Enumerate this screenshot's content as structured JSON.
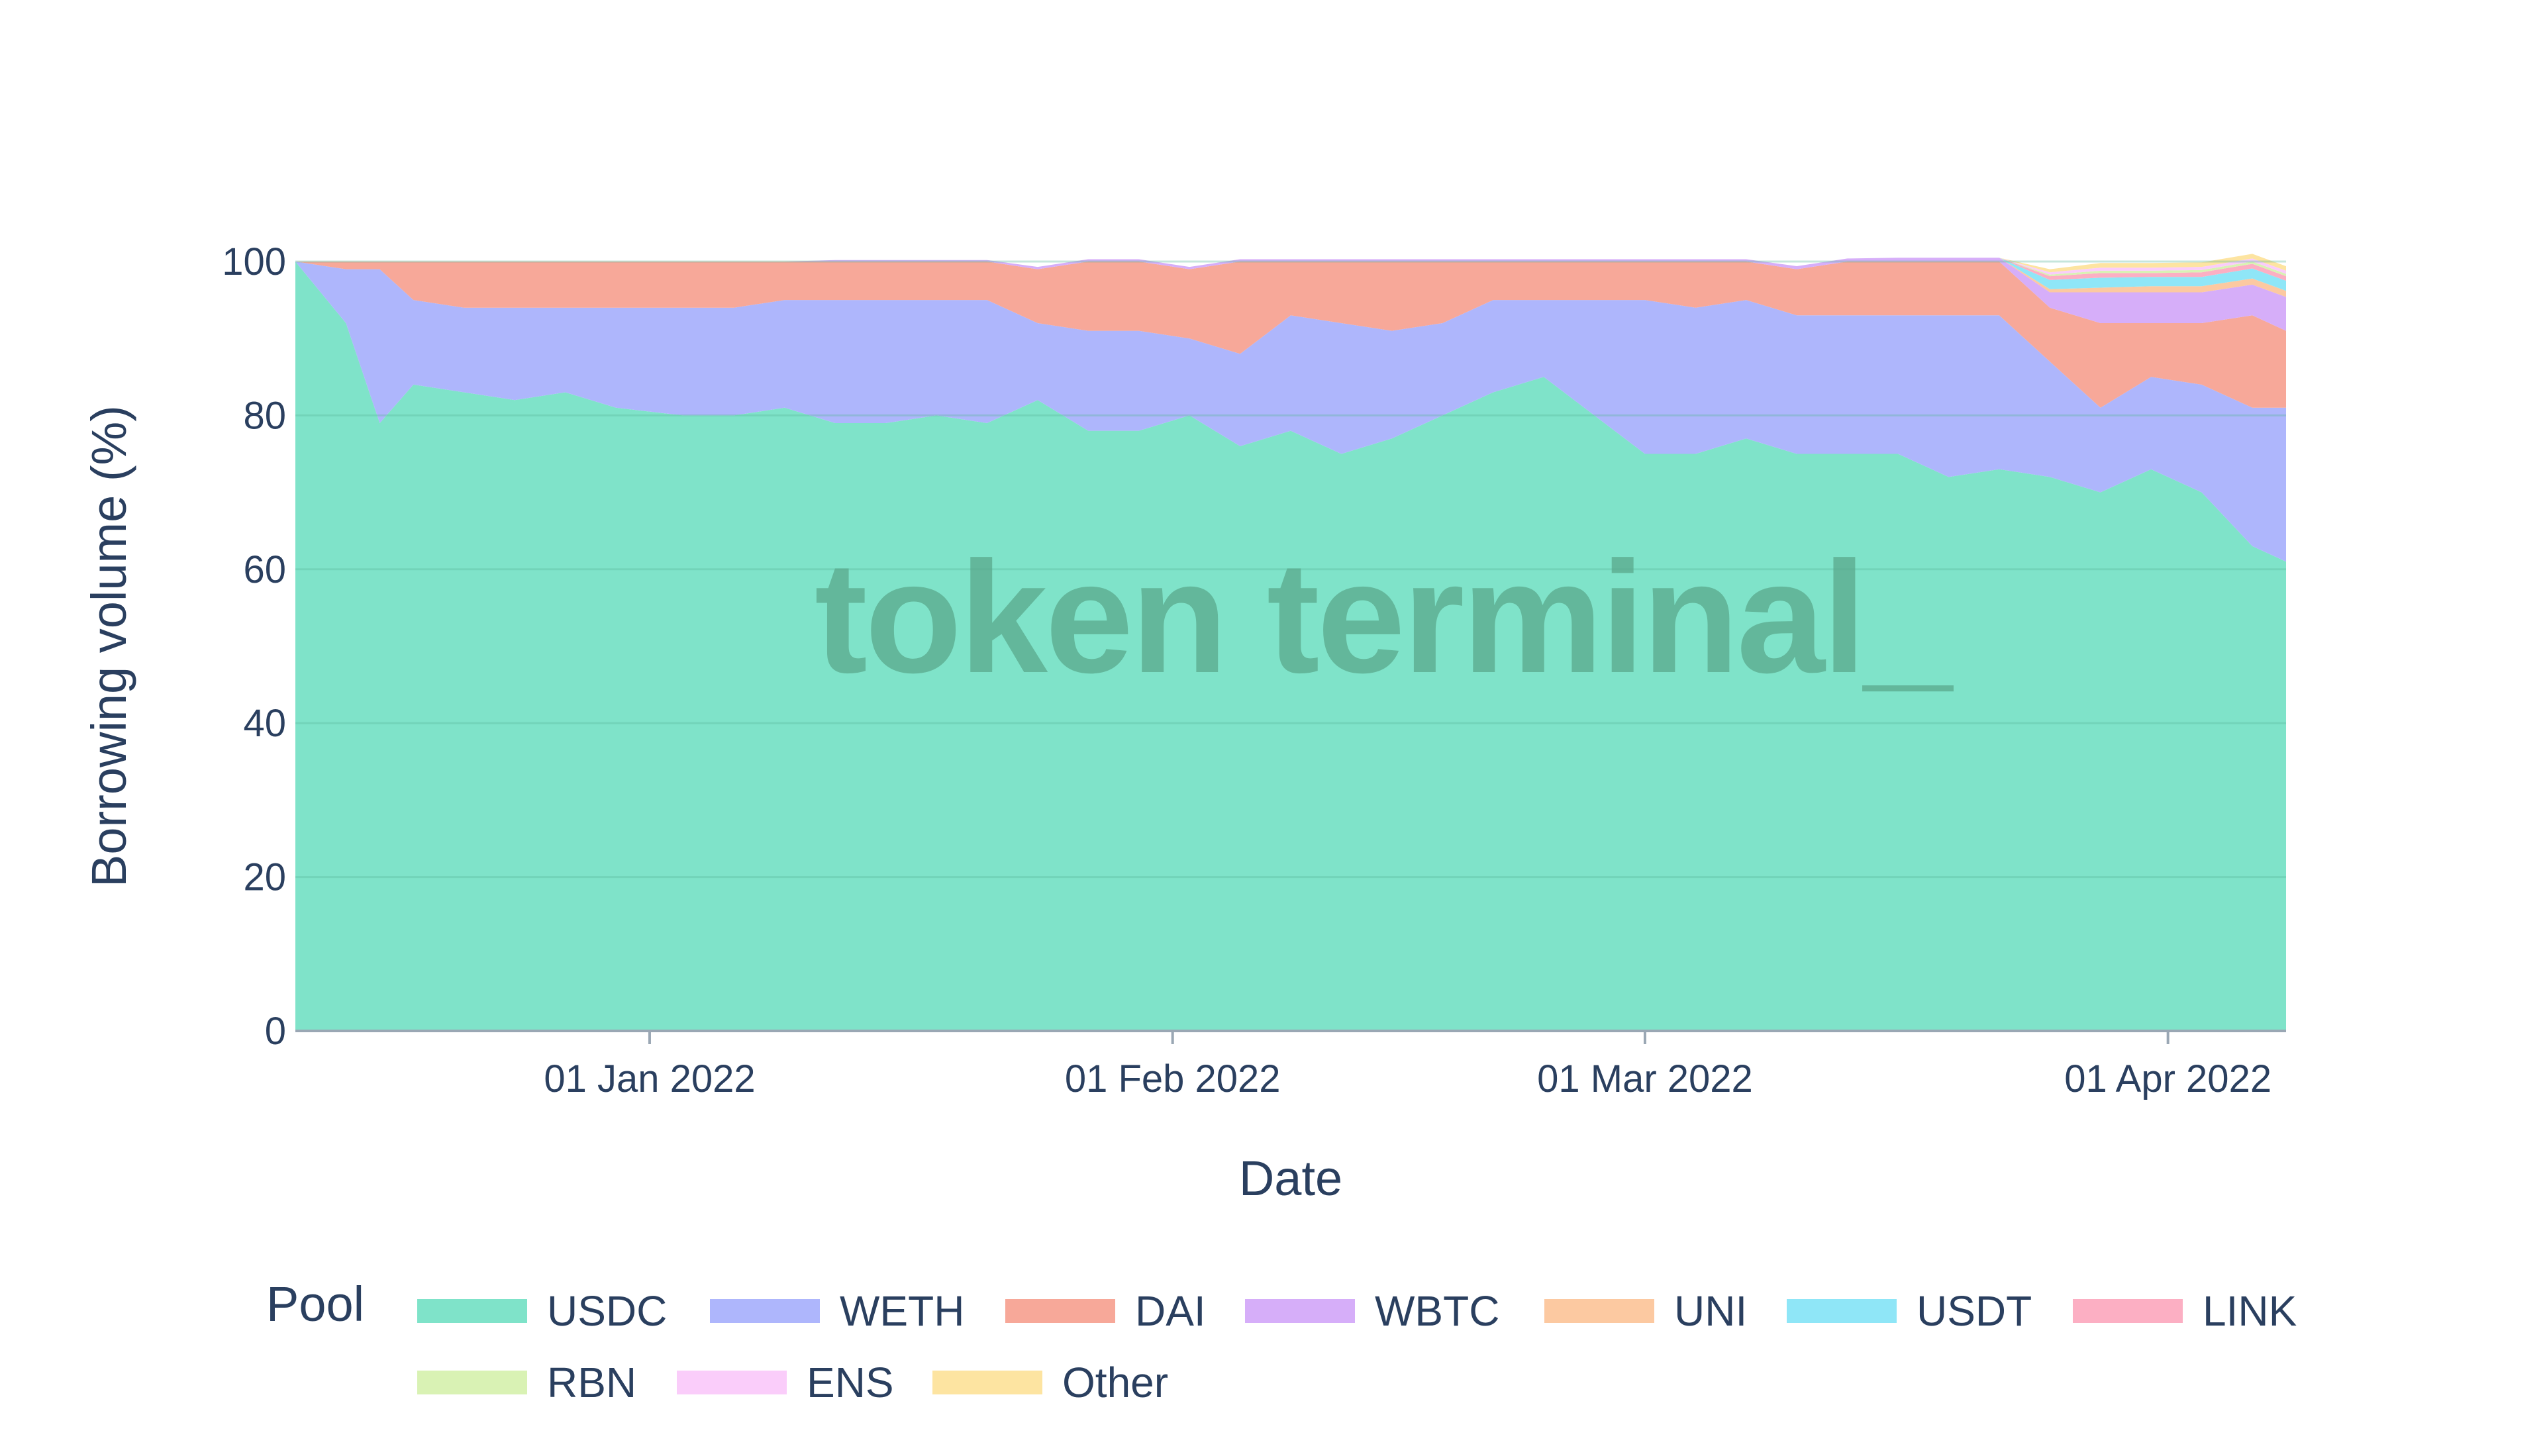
{
  "chart_data": {
    "type": "area",
    "stacked": true,
    "normalized": true,
    "xlabel": "Date",
    "ylabel": "Borrowing volume (%)",
    "ylim": [
      0,
      100
    ],
    "xlim": [
      "2021-12-11",
      "2022-04-08"
    ],
    "yticks": [
      0,
      20,
      40,
      60,
      80,
      100
    ],
    "xticks": [
      {
        "date": "2022-01-01",
        "label": "01 Jan 2022"
      },
      {
        "date": "2022-02-01",
        "label": "01 Feb 2022"
      },
      {
        "date": "2022-03-01",
        "label": "01 Mar 2022"
      },
      {
        "date": "2022-04-01",
        "label": "01 Apr 2022"
      }
    ],
    "grid": true,
    "legend": {
      "title": "Pool",
      "position": "bottom"
    },
    "watermark": "token terminal_",
    "x": [
      "2021-12-11",
      "2021-12-14",
      "2021-12-16",
      "2021-12-18",
      "2021-12-21",
      "2021-12-24",
      "2021-12-27",
      "2021-12-30",
      "2022-01-03",
      "2022-01-06",
      "2022-01-09",
      "2022-01-12",
      "2022-01-15",
      "2022-01-18",
      "2022-01-21",
      "2022-01-24",
      "2022-01-27",
      "2022-01-30",
      "2022-02-02",
      "2022-02-05",
      "2022-02-08",
      "2022-02-11",
      "2022-02-14",
      "2022-02-17",
      "2022-02-20",
      "2022-02-23",
      "2022-02-26",
      "2022-03-01",
      "2022-03-04",
      "2022-03-07",
      "2022-03-10",
      "2022-03-13",
      "2022-03-16",
      "2022-03-19",
      "2022-03-22",
      "2022-03-25",
      "2022-03-28",
      "2022-03-31",
      "2022-04-03",
      "2022-04-06",
      "2022-04-08"
    ],
    "series": [
      {
        "name": "USDC",
        "color": "#7fe3c9",
        "values": [
          100,
          92,
          79,
          84,
          83,
          82,
          83,
          81,
          80,
          80,
          81,
          79,
          79,
          80,
          79,
          82,
          78,
          78,
          80,
          76,
          78,
          75,
          77,
          80,
          83,
          85,
          80,
          75,
          75,
          77,
          75,
          75,
          75,
          72,
          73,
          72,
          70,
          73,
          70,
          63,
          61
        ]
      },
      {
        "name": "WETH",
        "color": "#aeb6fc",
        "values": [
          0,
          7,
          20,
          11,
          11,
          12,
          11,
          13,
          14,
          14,
          14,
          16,
          16,
          15,
          16,
          10,
          13,
          13,
          10,
          12,
          15,
          17,
          14,
          12,
          12,
          10,
          15,
          20,
          19,
          18,
          18,
          18,
          18,
          21,
          20,
          15,
          11,
          12,
          14,
          18,
          20
        ]
      },
      {
        "name": "DAI",
        "color": "#f7a899",
        "values": [
          0,
          1,
          1,
          5,
          6,
          6,
          6,
          6,
          6,
          6,
          5,
          5,
          5,
          5,
          5,
          7,
          9,
          9,
          9,
          12,
          7,
          8,
          9,
          8,
          5,
          5,
          5,
          5,
          6,
          5,
          6,
          7,
          7,
          7,
          7,
          7,
          11,
          7,
          8,
          12,
          10
        ]
      },
      {
        "name": "WBTC",
        "color": "#d6aef9",
        "values": [
          0,
          0,
          0,
          0,
          0,
          0,
          0,
          0,
          0,
          0,
          0,
          0.2,
          0.2,
          0.2,
          0.2,
          0.3,
          0.3,
          0.3,
          0.3,
          0.3,
          0.3,
          0.3,
          0.3,
          0.3,
          0.3,
          0.3,
          0.3,
          0.3,
          0.3,
          0.3,
          0.4,
          0.4,
          0.5,
          0.5,
          0.5,
          2,
          4,
          4,
          4,
          4,
          4.4
        ]
      },
      {
        "name": "UNI",
        "color": "#fcc9a1",
        "values": [
          0,
          0,
          0,
          0,
          0,
          0,
          0,
          0,
          0,
          0,
          0,
          0,
          0,
          0,
          0,
          0,
          0,
          0,
          0,
          0,
          0,
          0,
          0,
          0,
          0,
          0,
          0,
          0,
          0,
          0,
          0,
          0,
          0,
          0,
          0,
          0.4,
          0.6,
          0.8,
          0.8,
          0.8,
          0.8
        ]
      },
      {
        "name": "USDT",
        "color": "#8fe6f7",
        "values": [
          0,
          0,
          0,
          0,
          0,
          0,
          0,
          0,
          0,
          0,
          0,
          0,
          0,
          0,
          0,
          0,
          0,
          0,
          0,
          0,
          0,
          0,
          0,
          0,
          0,
          0,
          0,
          0,
          0,
          0,
          0,
          0,
          0,
          0,
          0,
          1.2,
          1.3,
          1.2,
          1.2,
          1.3,
          1.3
        ]
      },
      {
        "name": "LINK",
        "color": "#fcafc3",
        "values": [
          0,
          0,
          0,
          0,
          0,
          0,
          0,
          0,
          0,
          0,
          0,
          0,
          0,
          0,
          0,
          0,
          0,
          0,
          0,
          0,
          0,
          0,
          0,
          0,
          0,
          0,
          0,
          0,
          0,
          0,
          0,
          0,
          0,
          0,
          0,
          0.5,
          0.6,
          0.5,
          0.6,
          0.6,
          0.6
        ]
      },
      {
        "name": "RBN",
        "color": "#d9f2b4",
        "values": [
          0,
          0,
          0,
          0,
          0,
          0,
          0,
          0,
          0,
          0,
          0,
          0,
          0,
          0,
          0,
          0,
          0,
          0,
          0,
          0,
          0,
          0,
          0,
          0,
          0,
          0,
          0,
          0,
          0,
          0,
          0,
          0,
          0,
          0,
          0,
          0.2,
          0.3,
          0.3,
          0.3,
          0.3,
          0.3
        ]
      },
      {
        "name": "ENS",
        "color": "#facdfa",
        "values": [
          0,
          0,
          0,
          0,
          0,
          0,
          0,
          0,
          0,
          0,
          0,
          0,
          0,
          0,
          0,
          0,
          0,
          0,
          0,
          0,
          0,
          0,
          0,
          0,
          0,
          0,
          0,
          0,
          0,
          0,
          0,
          0,
          0,
          0,
          0,
          0.3,
          0.4,
          0.4,
          0.4,
          0.4,
          0.4
        ]
      },
      {
        "name": "Other",
        "color": "#fde4a1",
        "values": [
          0,
          0,
          0,
          0,
          0,
          0,
          0,
          0,
          0,
          0,
          0,
          0,
          0,
          0,
          0,
          0,
          0,
          0,
          0,
          0,
          0,
          0,
          0,
          0,
          0,
          0,
          0,
          0,
          0,
          0,
          0,
          0,
          0,
          0,
          0,
          0.4,
          0.6,
          0.6,
          0.6,
          0.6,
          0.6
        ]
      }
    ]
  }
}
